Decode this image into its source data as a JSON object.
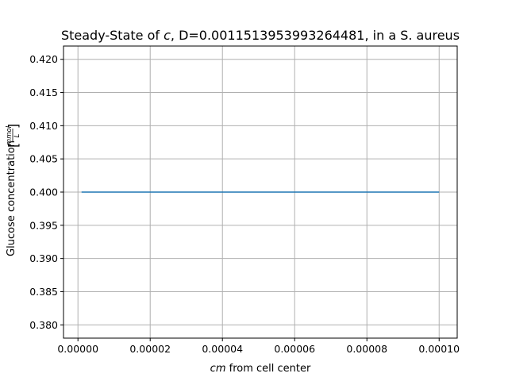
{
  "chart_data": {
    "type": "line",
    "title_pre": "Steady-State of ",
    "title_var": "c",
    "title_post": ", D=0.0011513953993264481, in a S. aureus",
    "xlabel_var": "cm",
    "xlabel_rest": " from cell center",
    "ylabel_text": "Glucose concentration ",
    "ylabel_unit_num": "mmol",
    "ylabel_unit_den": "L",
    "xlim": [
      -4e-06,
      0.000105
    ],
    "ylim": [
      0.378,
      0.422
    ],
    "xticks": [
      0.0,
      2e-05,
      4e-05,
      6e-05,
      8e-05,
      0.0001
    ],
    "xtick_labels": [
      "0.00000",
      "0.00002",
      "0.00004",
      "0.00006",
      "0.00008",
      "0.00010"
    ],
    "yticks": [
      0.38,
      0.385,
      0.39,
      0.395,
      0.4,
      0.405,
      0.41,
      0.415,
      0.42
    ],
    "ytick_labels": [
      "0.380",
      "0.385",
      "0.390",
      "0.395",
      "0.400",
      "0.405",
      "0.410",
      "0.415",
      "0.420"
    ],
    "grid": true,
    "series": [
      {
        "x": [
          1e-06,
          0.0001
        ],
        "y": [
          0.4,
          0.4
        ],
        "color": "#1f77b4"
      }
    ]
  }
}
